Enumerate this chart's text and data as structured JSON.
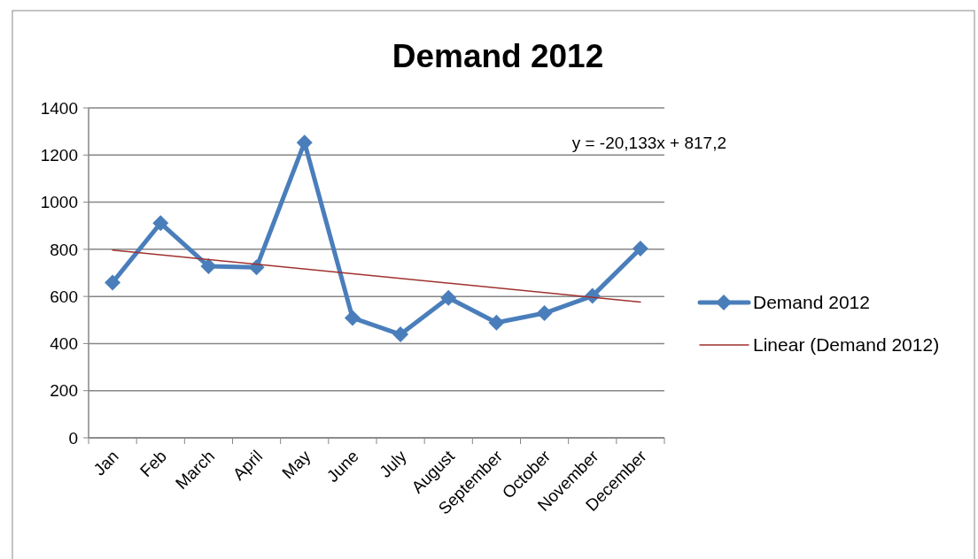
{
  "chart_data": {
    "type": "line",
    "title": "Demand 2012",
    "categories": [
      "Jan",
      "Feb",
      "March",
      "April",
      "May",
      "June",
      "July",
      "August",
      "September",
      "October",
      "November",
      "December"
    ],
    "series": [
      {
        "name": "Demand 2012",
        "color": "#4a7ebb",
        "marker": "diamond",
        "values": [
          659,
          911,
          728,
          723,
          1253,
          509,
          439,
          594,
          489,
          529,
          602,
          803
        ]
      },
      {
        "name": "Linear (Demand 2012)",
        "type": "line",
        "color": "#a0312e",
        "marker": "none",
        "x": [
          "Jan",
          "December"
        ],
        "values": [
          797,
          576
        ]
      }
    ],
    "ylim": [
      0,
      1400
    ],
    "yticks": [
      0,
      200,
      400,
      600,
      800,
      1000,
      1200,
      1400
    ],
    "grid": "y",
    "legend": "right",
    "annotations": [
      "y = -20,133x + 817,2"
    ]
  }
}
